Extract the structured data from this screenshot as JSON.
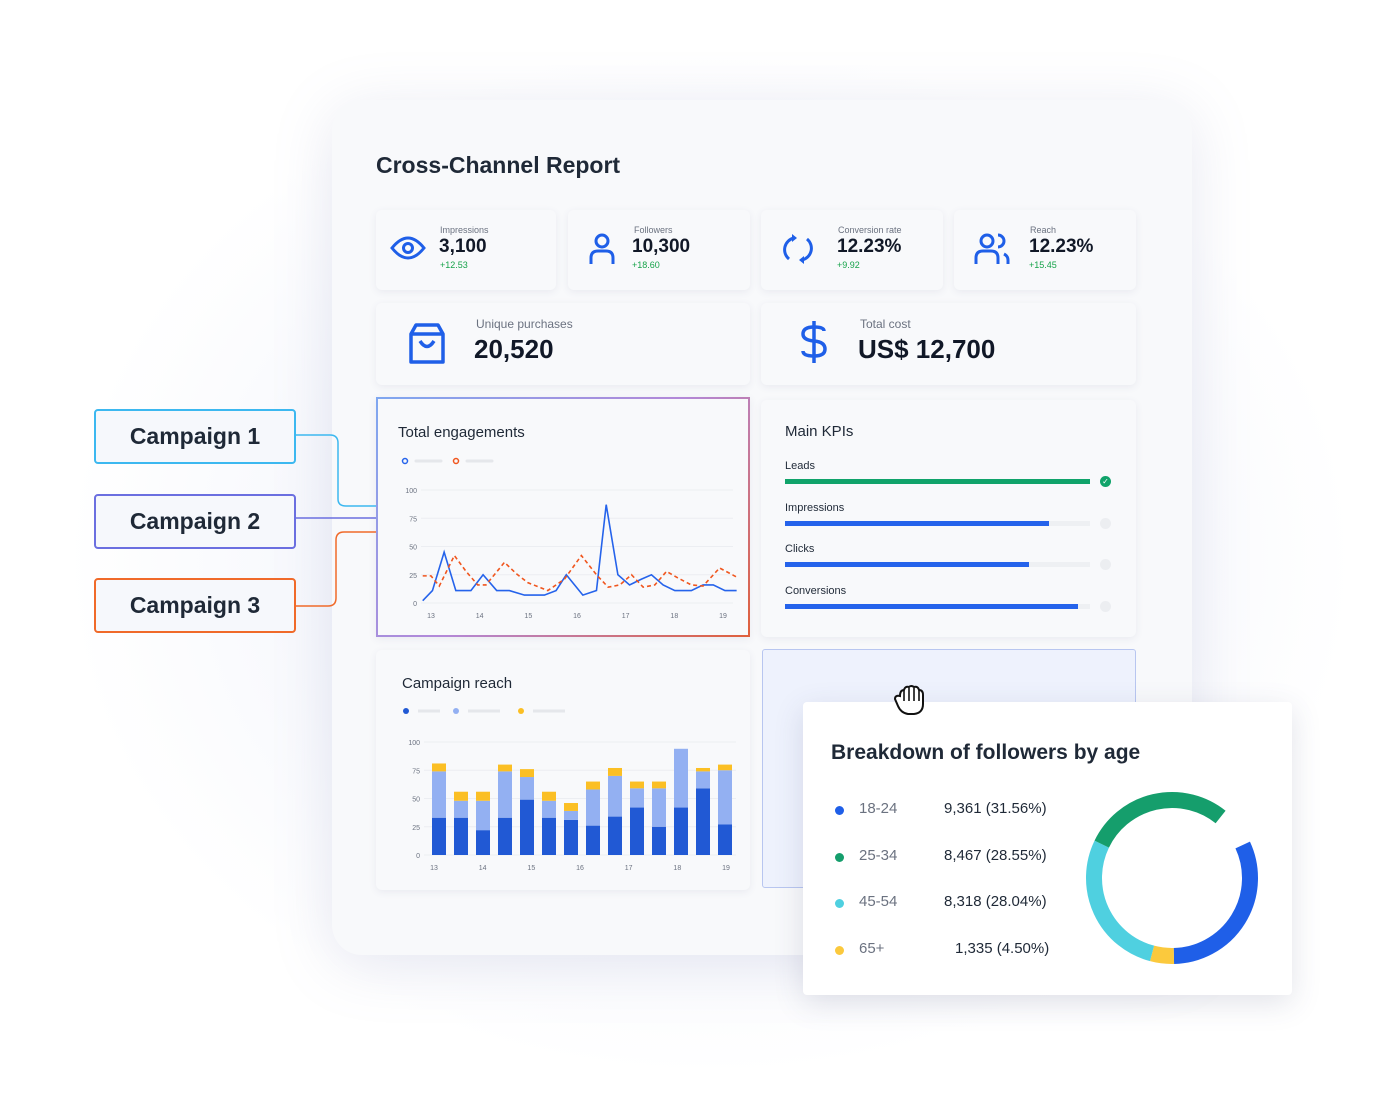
{
  "report_title": "Cross-Channel Report",
  "metrics": [
    {
      "label": "Impressions",
      "value": "3,100",
      "delta": "+12.53",
      "icon": "eye-icon"
    },
    {
      "label": "Followers",
      "value": "10,300",
      "delta": "+18.60",
      "icon": "user-icon"
    },
    {
      "label": "Conversion rate",
      "value": "12.23%",
      "delta": "+9.92",
      "icon": "refresh-icon"
    },
    {
      "label": "Reach",
      "value": "12.23%",
      "delta": "+15.45",
      "icon": "users-icon"
    }
  ],
  "big_metrics": [
    {
      "label": "Unique purchases",
      "value": "20,520",
      "icon": "shopping-bag-icon"
    },
    {
      "label": "Total cost",
      "value": "US$ 12,700",
      "icon": "dollar-icon"
    }
  ],
  "campaigns": [
    "Campaign 1",
    "Campaign 2",
    "Campaign 3"
  ],
  "campaign_colors": [
    "#3cb8f0",
    "#6b6fe0",
    "#f06a2a"
  ],
  "main_kpis": {
    "title": "Main KPIs",
    "items": [
      {
        "label": "Leads",
        "progress": 1.0,
        "color": "#10a36a",
        "complete": true
      },
      {
        "label": "Impressions",
        "progress": 0.865,
        "color": "#2563eb",
        "complete": false
      },
      {
        "label": "Clicks",
        "progress": 0.8,
        "color": "#2563eb",
        "complete": false
      },
      {
        "label": "Conversions",
        "progress": 0.96,
        "color": "#2563eb",
        "complete": false
      }
    ]
  },
  "chart_data": [
    {
      "type": "line",
      "title": "Total engagements",
      "ylim": [
        0,
        100
      ],
      "yticks": [
        "0",
        "25",
        "50",
        "75",
        "100"
      ],
      "xticks": [
        "13",
        "14",
        "15",
        "16",
        "17",
        "18",
        "19"
      ],
      "grid": true,
      "series": [
        {
          "color": "#2563eb",
          "style": "solid",
          "x": [
            12.83,
            13.03,
            13.27,
            13.51,
            13.82,
            14.07,
            14.35,
            14.61,
            14.92,
            15.16,
            15.33,
            15.57,
            15.78,
            16.12,
            16.4,
            16.6,
            16.84,
            17.08,
            17.32,
            17.53,
            17.77,
            18.01,
            18.35,
            18.59,
            18.8,
            19.04,
            19.28
          ],
          "y": [
            2,
            11,
            45,
            11,
            11,
            25,
            11,
            11,
            7,
            7,
            7,
            11,
            25,
            7,
            11,
            87,
            25,
            16,
            21,
            25,
            16,
            11,
            11,
            16,
            16,
            11,
            11
          ]
        },
        {
          "color": "#f0561e",
          "style": "dashed",
          "x": [
            12.83,
            13.0,
            13.17,
            13.48,
            13.72,
            13.96,
            14.13,
            14.51,
            14.75,
            14.99,
            15.4,
            15.74,
            16.09,
            16.4,
            16.64,
            16.88,
            17.12,
            17.36,
            17.6,
            17.84,
            18.08,
            18.35,
            18.59,
            18.93,
            19.28
          ],
          "y": [
            24,
            24,
            15,
            42,
            28,
            16,
            16,
            36,
            26,
            18,
            11,
            21,
            42,
            25,
            14,
            16,
            25,
            14,
            16,
            28,
            22,
            16,
            15,
            31,
            23
          ]
        }
      ]
    },
    {
      "type": "bar",
      "stacked": true,
      "title": "Campaign reach",
      "ylim": [
        0,
        100
      ],
      "yticks": [
        "0",
        "25",
        "50",
        "75",
        "100"
      ],
      "xticks": [
        "13",
        "14",
        "15",
        "16",
        "17",
        "18",
        "19"
      ],
      "grid": true,
      "series": [
        {
          "color": "#2159d4",
          "values": [
            33,
            33,
            22,
            33,
            49,
            33,
            31,
            26,
            34,
            42,
            25,
            42,
            59,
            27
          ]
        },
        {
          "color": "#93b0f2",
          "values": [
            41,
            15,
            26,
            41,
            20,
            15,
            8,
            32,
            36,
            17,
            34,
            52,
            15,
            48
          ]
        },
        {
          "color": "#fbbf24",
          "values": [
            7,
            8,
            8,
            6,
            7,
            8,
            7,
            7,
            7,
            6,
            6,
            0,
            3,
            5
          ]
        }
      ]
    },
    {
      "type": "pie",
      "title": "Breakdown of followers by age",
      "donut": true,
      "slices": [
        {
          "label": "18-24",
          "value": "9,361 (31.56%)",
          "percent": 31.56,
          "color": "#1f5fe8"
        },
        {
          "label": "25-34",
          "value": "8,467 (28.55%)",
          "percent": 28.55,
          "color": "#159e6c"
        },
        {
          "label": "45-54",
          "value": "8,318 (28.04%)",
          "percent": 28.04,
          "color": "#4fd0e0"
        },
        {
          "label": "65+",
          "value": "1,335 (4.50%)",
          "percent": 4.5,
          "color": "#fbc93d"
        }
      ]
    }
  ]
}
